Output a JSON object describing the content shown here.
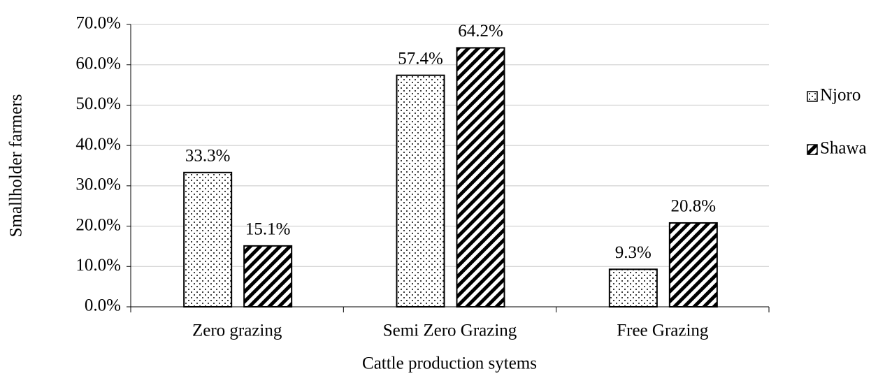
{
  "chart_data": {
    "type": "bar",
    "x_label": "Cattle production sytems",
    "y_label": "Smallholder farmers",
    "categories": [
      "Zero grazing",
      "Semi Zero Grazing",
      "Free Grazing"
    ],
    "series": [
      {
        "name": "Njoro",
        "color": "#000000",
        "pattern": "dots",
        "values": [
          33.3,
          57.4,
          9.3
        ],
        "value_labels": [
          "33.3%",
          "57.4%",
          "9.3%"
        ]
      },
      {
        "name": "Shawa",
        "color": "#000000",
        "pattern": "hatch",
        "values": [
          15.1,
          64.2,
          20.8
        ],
        "value_labels": [
          "15.1%",
          "64.2%",
          "20.8%"
        ]
      }
    ],
    "ylim": [
      0,
      70
    ],
    "yticks": [
      {
        "value": 0,
        "label": "0.0%"
      },
      {
        "value": 10,
        "label": "10.0%"
      },
      {
        "value": 20,
        "label": "20.0%"
      },
      {
        "value": 30,
        "label": "30.0%"
      },
      {
        "value": 40,
        "label": "40.0%"
      },
      {
        "value": 50,
        "label": "50.0%"
      },
      {
        "value": 60,
        "label": "60.0%"
      },
      {
        "value": 70,
        "label": "70.0%"
      }
    ],
    "grid": true,
    "legend": "right"
  }
}
